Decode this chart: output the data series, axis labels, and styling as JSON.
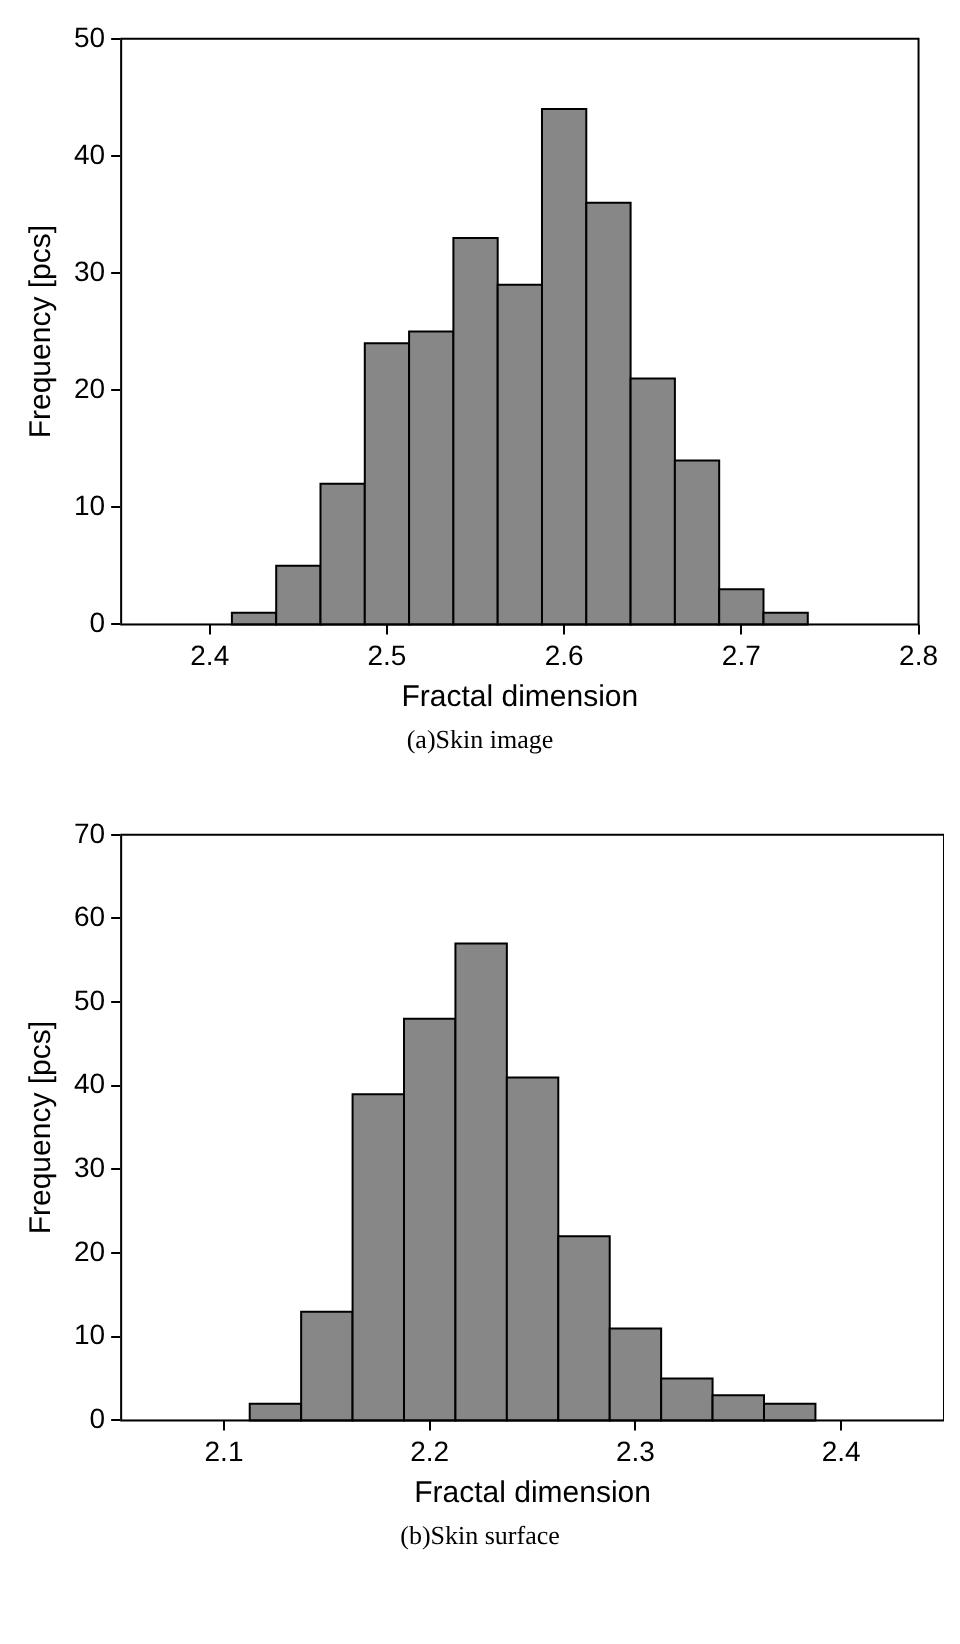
{
  "chart_data": [
    {
      "type": "histogram",
      "title": "(a)Skin image",
      "xlabel": "Fractal dimension",
      "ylabel": "Frequency [pcs]",
      "color": "#878787",
      "bins": [
        2.4125,
        2.4375,
        2.4625,
        2.4875,
        2.5125,
        2.5375,
        2.5625,
        2.5875,
        2.6125,
        2.6375,
        2.6625,
        2.6875,
        2.7125,
        2.7375
      ],
      "values": [
        1,
        5,
        12,
        24,
        25,
        33,
        29,
        44,
        36,
        21,
        14,
        3,
        1
      ],
      "xlim": [
        2.35,
        2.8
      ],
      "xticks": [
        2.4,
        2.5,
        2.6,
        2.7,
        2.8
      ],
      "ylim": [
        0,
        50
      ],
      "yticks": [
        0,
        10,
        20,
        30,
        40,
        50
      ],
      "grid": false
    },
    {
      "type": "histogram",
      "title": "(b)Skin surface",
      "xlabel": "Fractal dimension",
      "ylabel": "Frequency [pcs]",
      "color": "#878787",
      "bins": [
        2.1125,
        2.1375,
        2.1625,
        2.1875,
        2.2125,
        2.2375,
        2.2625,
        2.2875,
        2.3125,
        2.3375,
        2.3625,
        2.3875
      ],
      "values": [
        2,
        13,
        39,
        48,
        57,
        41,
        22,
        11,
        5,
        3,
        2
      ],
      "xlim": [
        2.05,
        2.45
      ],
      "xticks": [
        2.1,
        2.2,
        2.3,
        2.4
      ],
      "ylim": [
        0,
        70
      ],
      "yticks": [
        0,
        10,
        20,
        30,
        40,
        50,
        60,
        70
      ],
      "grid": false
    }
  ]
}
